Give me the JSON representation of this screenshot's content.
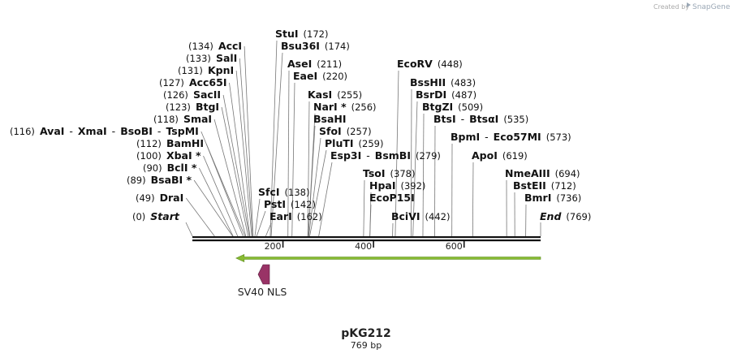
{
  "header": {
    "credit_prefix": "Created by",
    "credit_brand": "SnapGene"
  },
  "plasmid": {
    "name": "pKG212",
    "length_label": "769 bp",
    "length": 769
  },
  "ruler": {
    "ticks": [
      {
        "pos": 200,
        "label": "200"
      },
      {
        "pos": 400,
        "label": "400"
      },
      {
        "pos": 600,
        "label": "600"
      }
    ]
  },
  "features": [
    {
      "name": "SV40 NLS",
      "kind": "nls",
      "start": 153,
      "end": 174,
      "direction": "reverse",
      "color": "#993366"
    },
    {
      "name": "",
      "kind": "arrow",
      "start": 100,
      "end": 769,
      "direction": "reverse",
      "color": "#88bb33"
    }
  ],
  "sites": [
    {
      "id": "start",
      "parts": [
        {
          "t": "(0)",
          "k": "pos"
        },
        {
          "t": "Start",
          "k": "enz ital"
        }
      ],
      "site": 0
    },
    {
      "id": "drai",
      "parts": [
        {
          "t": "(49)",
          "k": "pos"
        },
        {
          "t": "DraI",
          "k": "enz"
        }
      ],
      "site": 49
    },
    {
      "id": "bsabi",
      "parts": [
        {
          "t": "(89)",
          "k": "pos"
        },
        {
          "t": "BsaBI *",
          "k": "enz"
        }
      ],
      "site": 89
    },
    {
      "id": "bcli",
      "parts": [
        {
          "t": "(90)",
          "k": "pos"
        },
        {
          "t": "BclI *",
          "k": "enz"
        }
      ],
      "site": 90
    },
    {
      "id": "xbai",
      "parts": [
        {
          "t": "(100)",
          "k": "pos"
        },
        {
          "t": "XbaI *",
          "k": "enz"
        }
      ],
      "site": 100
    },
    {
      "id": "bamhi",
      "parts": [
        {
          "t": "(112)",
          "k": "pos"
        },
        {
          "t": "BamHI",
          "k": "enz"
        }
      ],
      "site": 112
    },
    {
      "id": "avai",
      "parts": [
        {
          "t": "(116)",
          "k": "pos"
        },
        {
          "t": "AvaI",
          "k": "enz"
        },
        {
          "t": "-",
          "k": "lbl"
        },
        {
          "t": "XmaI",
          "k": "enz"
        },
        {
          "t": "-",
          "k": "lbl"
        },
        {
          "t": "BsoBI",
          "k": "enz"
        },
        {
          "t": "-",
          "k": "lbl"
        },
        {
          "t": "TspMI",
          "k": "enz"
        }
      ],
      "site": 116
    },
    {
      "id": "smai",
      "parts": [
        {
          "t": "(118)",
          "k": "pos"
        },
        {
          "t": "SmaI",
          "k": "enz"
        }
      ],
      "site": 118
    },
    {
      "id": "btgi",
      "parts": [
        {
          "t": "(123)",
          "k": "pos"
        },
        {
          "t": "BtgI",
          "k": "enz"
        }
      ],
      "site": 123
    },
    {
      "id": "sacii",
      "parts": [
        {
          "t": "(126)",
          "k": "pos"
        },
        {
          "t": "SacII",
          "k": "enz"
        }
      ],
      "site": 126
    },
    {
      "id": "acc65i",
      "parts": [
        {
          "t": "(127)",
          "k": "pos"
        },
        {
          "t": "Acc65I",
          "k": "enz"
        }
      ],
      "site": 127
    },
    {
      "id": "kpni",
      "parts": [
        {
          "t": "(131)",
          "k": "pos"
        },
        {
          "t": "KpnI",
          "k": "enz"
        }
      ],
      "site": 131
    },
    {
      "id": "sali",
      "parts": [
        {
          "t": "(133)",
          "k": "pos"
        },
        {
          "t": "SalI",
          "k": "enz"
        }
      ],
      "site": 133
    },
    {
      "id": "acci",
      "parts": [
        {
          "t": "(134)",
          "k": "pos"
        },
        {
          "t": "AccI",
          "k": "enz"
        }
      ],
      "site": 134
    },
    {
      "id": "stui",
      "parts": [
        {
          "t": "StuI",
          "k": "enz"
        },
        {
          "t": "(172)",
          "k": "pos"
        }
      ],
      "site": 172
    },
    {
      "id": "bsu36i",
      "parts": [
        {
          "t": "Bsu36I",
          "k": "enz"
        },
        {
          "t": "(174)",
          "k": "pos"
        }
      ],
      "site": 174
    },
    {
      "id": "asei",
      "parts": [
        {
          "t": "AseI",
          "k": "enz"
        },
        {
          "t": "(211)",
          "k": "pos"
        }
      ],
      "site": 211
    },
    {
      "id": "eaei",
      "parts": [
        {
          "t": "EaeI",
          "k": "enz"
        },
        {
          "t": "(220)",
          "k": "pos"
        }
      ],
      "site": 220
    },
    {
      "id": "sfci",
      "parts": [
        {
          "t": "SfcI",
          "k": "enz"
        },
        {
          "t": "(138)",
          "k": "pos"
        }
      ],
      "site": 138
    },
    {
      "id": "psti",
      "parts": [
        {
          "t": "PstI",
          "k": "enz"
        },
        {
          "t": "(142)",
          "k": "pos"
        }
      ],
      "site": 142
    },
    {
      "id": "eari",
      "parts": [
        {
          "t": "EarI",
          "k": "enz"
        },
        {
          "t": "(162)",
          "k": "pos"
        }
      ],
      "site": 162
    },
    {
      "id": "kasi",
      "parts": [
        {
          "t": "KasI",
          "k": "enz"
        },
        {
          "t": "(255)",
          "k": "pos"
        }
      ],
      "site": 255
    },
    {
      "id": "nari",
      "parts": [
        {
          "t": "NarI *",
          "k": "enz"
        },
        {
          "t": "(256)",
          "k": "pos"
        }
      ],
      "site": 256
    },
    {
      "id": "bsahi",
      "parts": [
        {
          "t": "BsaHI",
          "k": "enz"
        }
      ],
      "site": 256
    },
    {
      "id": "sfoi",
      "parts": [
        {
          "t": "SfoI",
          "k": "enz"
        },
        {
          "t": "(257)",
          "k": "pos"
        }
      ],
      "site": 257
    },
    {
      "id": "pluti",
      "parts": [
        {
          "t": "PluTI",
          "k": "enz"
        },
        {
          "t": "(259)",
          "k": "pos"
        }
      ],
      "site": 259
    },
    {
      "id": "esp3i",
      "parts": [
        {
          "t": "Esp3I",
          "k": "enz"
        },
        {
          "t": "-",
          "k": "lbl"
        },
        {
          "t": "BsmBI",
          "k": "enz"
        },
        {
          "t": "(279)",
          "k": "pos"
        }
      ],
      "site": 279
    },
    {
      "id": "tsoi",
      "parts": [
        {
          "t": "TsoI",
          "k": "enz"
        },
        {
          "t": "(378)",
          "k": "pos"
        }
      ],
      "site": 378
    },
    {
      "id": "hpai",
      "parts": [
        {
          "t": "HpaI",
          "k": "enz"
        },
        {
          "t": "(392)",
          "k": "pos"
        }
      ],
      "site": 392
    },
    {
      "id": "ecop15i",
      "parts": [
        {
          "t": "EcoP15I",
          "k": "enz"
        }
      ],
      "site": 392
    },
    {
      "id": "bcivi",
      "parts": [
        {
          "t": "BciVI",
          "k": "enz"
        },
        {
          "t": "(442)",
          "k": "pos"
        }
      ],
      "site": 442
    },
    {
      "id": "ecorv",
      "parts": [
        {
          "t": "EcoRV",
          "k": "enz"
        },
        {
          "t": "(448)",
          "k": "pos"
        }
      ],
      "site": 448
    },
    {
      "id": "bsshii",
      "parts": [
        {
          "t": "BssHII",
          "k": "enz"
        },
        {
          "t": "(483)",
          "k": "pos"
        }
      ],
      "site": 483
    },
    {
      "id": "bsrdi",
      "parts": [
        {
          "t": "BsrDI",
          "k": "enz"
        },
        {
          "t": "(487)",
          "k": "pos"
        }
      ],
      "site": 487
    },
    {
      "id": "btgzi",
      "parts": [
        {
          "t": "BtgZI",
          "k": "enz"
        },
        {
          "t": "(509)",
          "k": "pos"
        }
      ],
      "site": 509
    },
    {
      "id": "btsi",
      "parts": [
        {
          "t": "BtsI",
          "k": "enz"
        },
        {
          "t": "-",
          "k": "lbl"
        },
        {
          "t": "BtsαI",
          "k": "enz"
        },
        {
          "t": "(535)",
          "k": "pos"
        }
      ],
      "site": 535
    },
    {
      "id": "bpmi",
      "parts": [
        {
          "t": "BpmI",
          "k": "enz"
        },
        {
          "t": "-",
          "k": "lbl"
        },
        {
          "t": "Eco57MI",
          "k": "enz"
        },
        {
          "t": "(573)",
          "k": "pos"
        }
      ],
      "site": 573
    },
    {
      "id": "apoi",
      "parts": [
        {
          "t": "ApoI",
          "k": "enz"
        },
        {
          "t": "(619)",
          "k": "pos"
        }
      ],
      "site": 619
    },
    {
      "id": "nmeaiii",
      "parts": [
        {
          "t": "NmeAIII",
          "k": "enz"
        },
        {
          "t": "(694)",
          "k": "pos"
        }
      ],
      "site": 694
    },
    {
      "id": "bsteii",
      "parts": [
        {
          "t": "BstEII",
          "k": "enz"
        },
        {
          "t": "(712)",
          "k": "pos"
        }
      ],
      "site": 712
    },
    {
      "id": "bmri",
      "parts": [
        {
          "t": "BmrI",
          "k": "enz"
        },
        {
          "t": "(736)",
          "k": "pos"
        }
      ],
      "site": 736
    },
    {
      "id": "end",
      "parts": [
        {
          "t": "End",
          "k": "enz ital"
        },
        {
          "t": "(769)",
          "k": "pos"
        }
      ],
      "site": 769
    }
  ]
}
